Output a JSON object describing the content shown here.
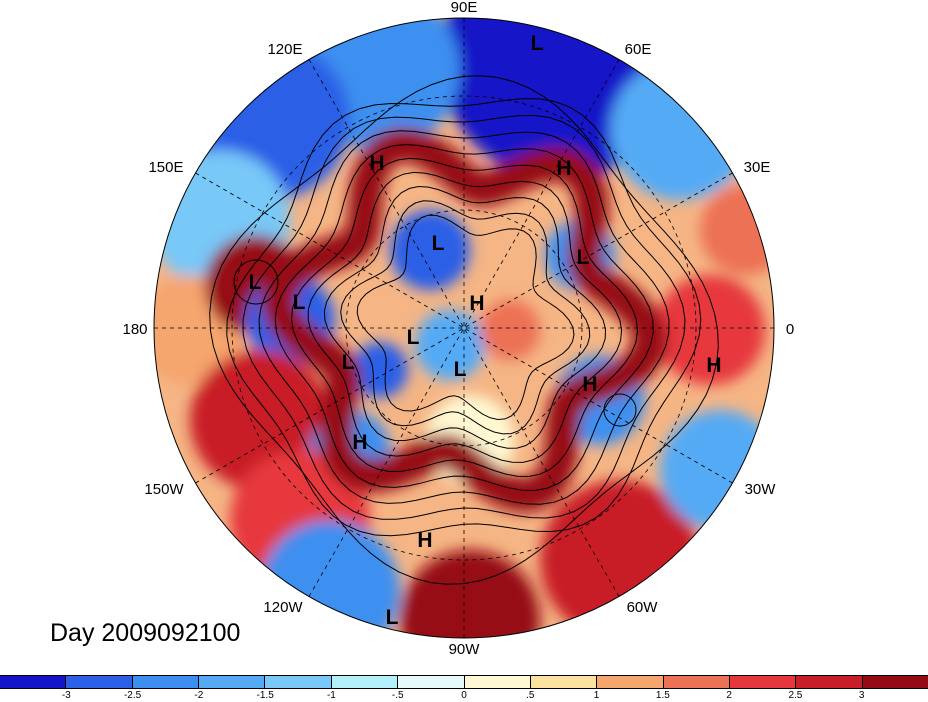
{
  "map": {
    "projection": "north polar stereographic",
    "longitude_labels": [
      "90E",
      "60E",
      "30E",
      "0",
      "30W",
      "60W",
      "90W",
      "120W",
      "150W",
      "180",
      "150E",
      "120E"
    ],
    "pressure_centers": [
      {
        "type": "L",
        "label": "L"
      },
      {
        "type": "H",
        "label": "H"
      },
      {
        "type": "H",
        "label": "H"
      },
      {
        "type": "L",
        "label": "L"
      },
      {
        "type": "L",
        "label": "L"
      },
      {
        "type": "L",
        "label": "L"
      },
      {
        "type": "L",
        "label": "L"
      },
      {
        "type": "H",
        "label": "H"
      },
      {
        "type": "L",
        "label": "L"
      },
      {
        "type": "L",
        "label": "L"
      },
      {
        "type": "L",
        "label": "L"
      },
      {
        "type": "H",
        "label": "H"
      },
      {
        "type": "H",
        "label": "H"
      },
      {
        "type": "H",
        "label": "H"
      },
      {
        "type": "H",
        "label": "H"
      },
      {
        "type": "L",
        "label": "L"
      }
    ]
  },
  "title": "Day 2009092100",
  "colorbar": {
    "colors": [
      "#1414c8",
      "#2a5fe6",
      "#3c8ff0",
      "#55aaf5",
      "#78c8f8",
      "#b4f0fa",
      "#e6fafc",
      "#fff8d2",
      "#fbe1a0",
      "#f5a56e",
      "#ec7155",
      "#e6373c",
      "#c81e28",
      "#960a14"
    ],
    "labels": [
      "-3",
      "-2.5",
      "-2",
      "-1.5",
      "-1",
      "-.5",
      "0",
      ".5",
      "1",
      "1.5",
      "2",
      "2.5",
      "3"
    ]
  }
}
